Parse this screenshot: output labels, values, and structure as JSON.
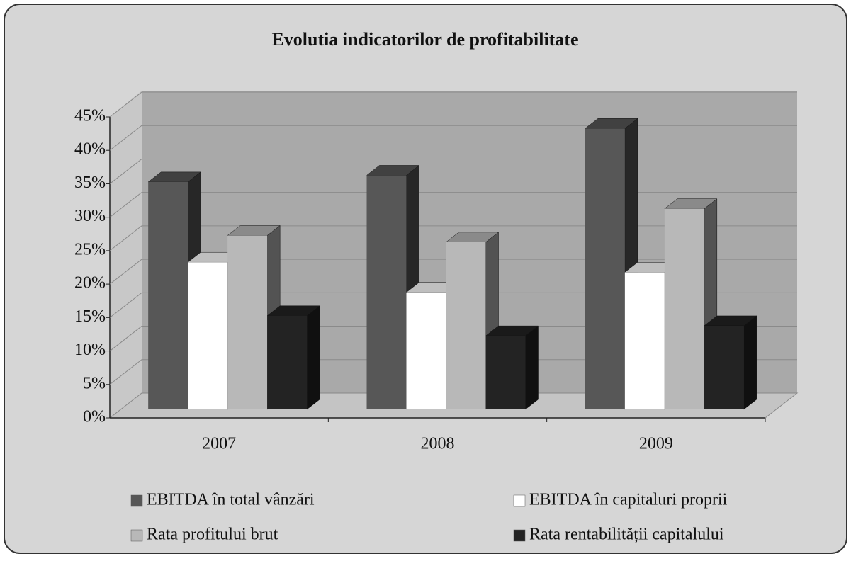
{
  "chart_data": {
    "type": "bar3d",
    "title": "Evolutia indicatorilor de profitabilitate",
    "categories": [
      "2007",
      "2008",
      "2009"
    ],
    "series": [
      {
        "name": "EBITDA în total vânzări",
        "color": "#575757",
        "values": [
          34,
          35,
          42
        ]
      },
      {
        "name": "EBITDA în capitaluri proprii",
        "color": "#ffffff",
        "values": [
          22,
          17.5,
          20.5
        ]
      },
      {
        "name": "Rata profitului brut",
        "color": "#b8b8b8",
        "values": [
          26,
          25,
          30
        ]
      },
      {
        "name": "Rata rentabilității capitalului",
        "color": "#232323",
        "values": [
          14,
          11,
          12.5
        ]
      }
    ],
    "ylim": [
      0,
      45
    ],
    "yticks": [
      {
        "value": 0,
        "label": "0%"
      },
      {
        "value": 5,
        "label": "5%"
      },
      {
        "value": 10,
        "label": "10%"
      },
      {
        "value": 15,
        "label": "15%"
      },
      {
        "value": 20,
        "label": "20%"
      },
      {
        "value": 25,
        "label": "25%"
      },
      {
        "value": 30,
        "label": "30%"
      },
      {
        "value": 35,
        "label": "35%"
      },
      {
        "value": 40,
        "label": "40%"
      },
      {
        "value": 45,
        "label": "45%"
      }
    ],
    "grid": true
  }
}
